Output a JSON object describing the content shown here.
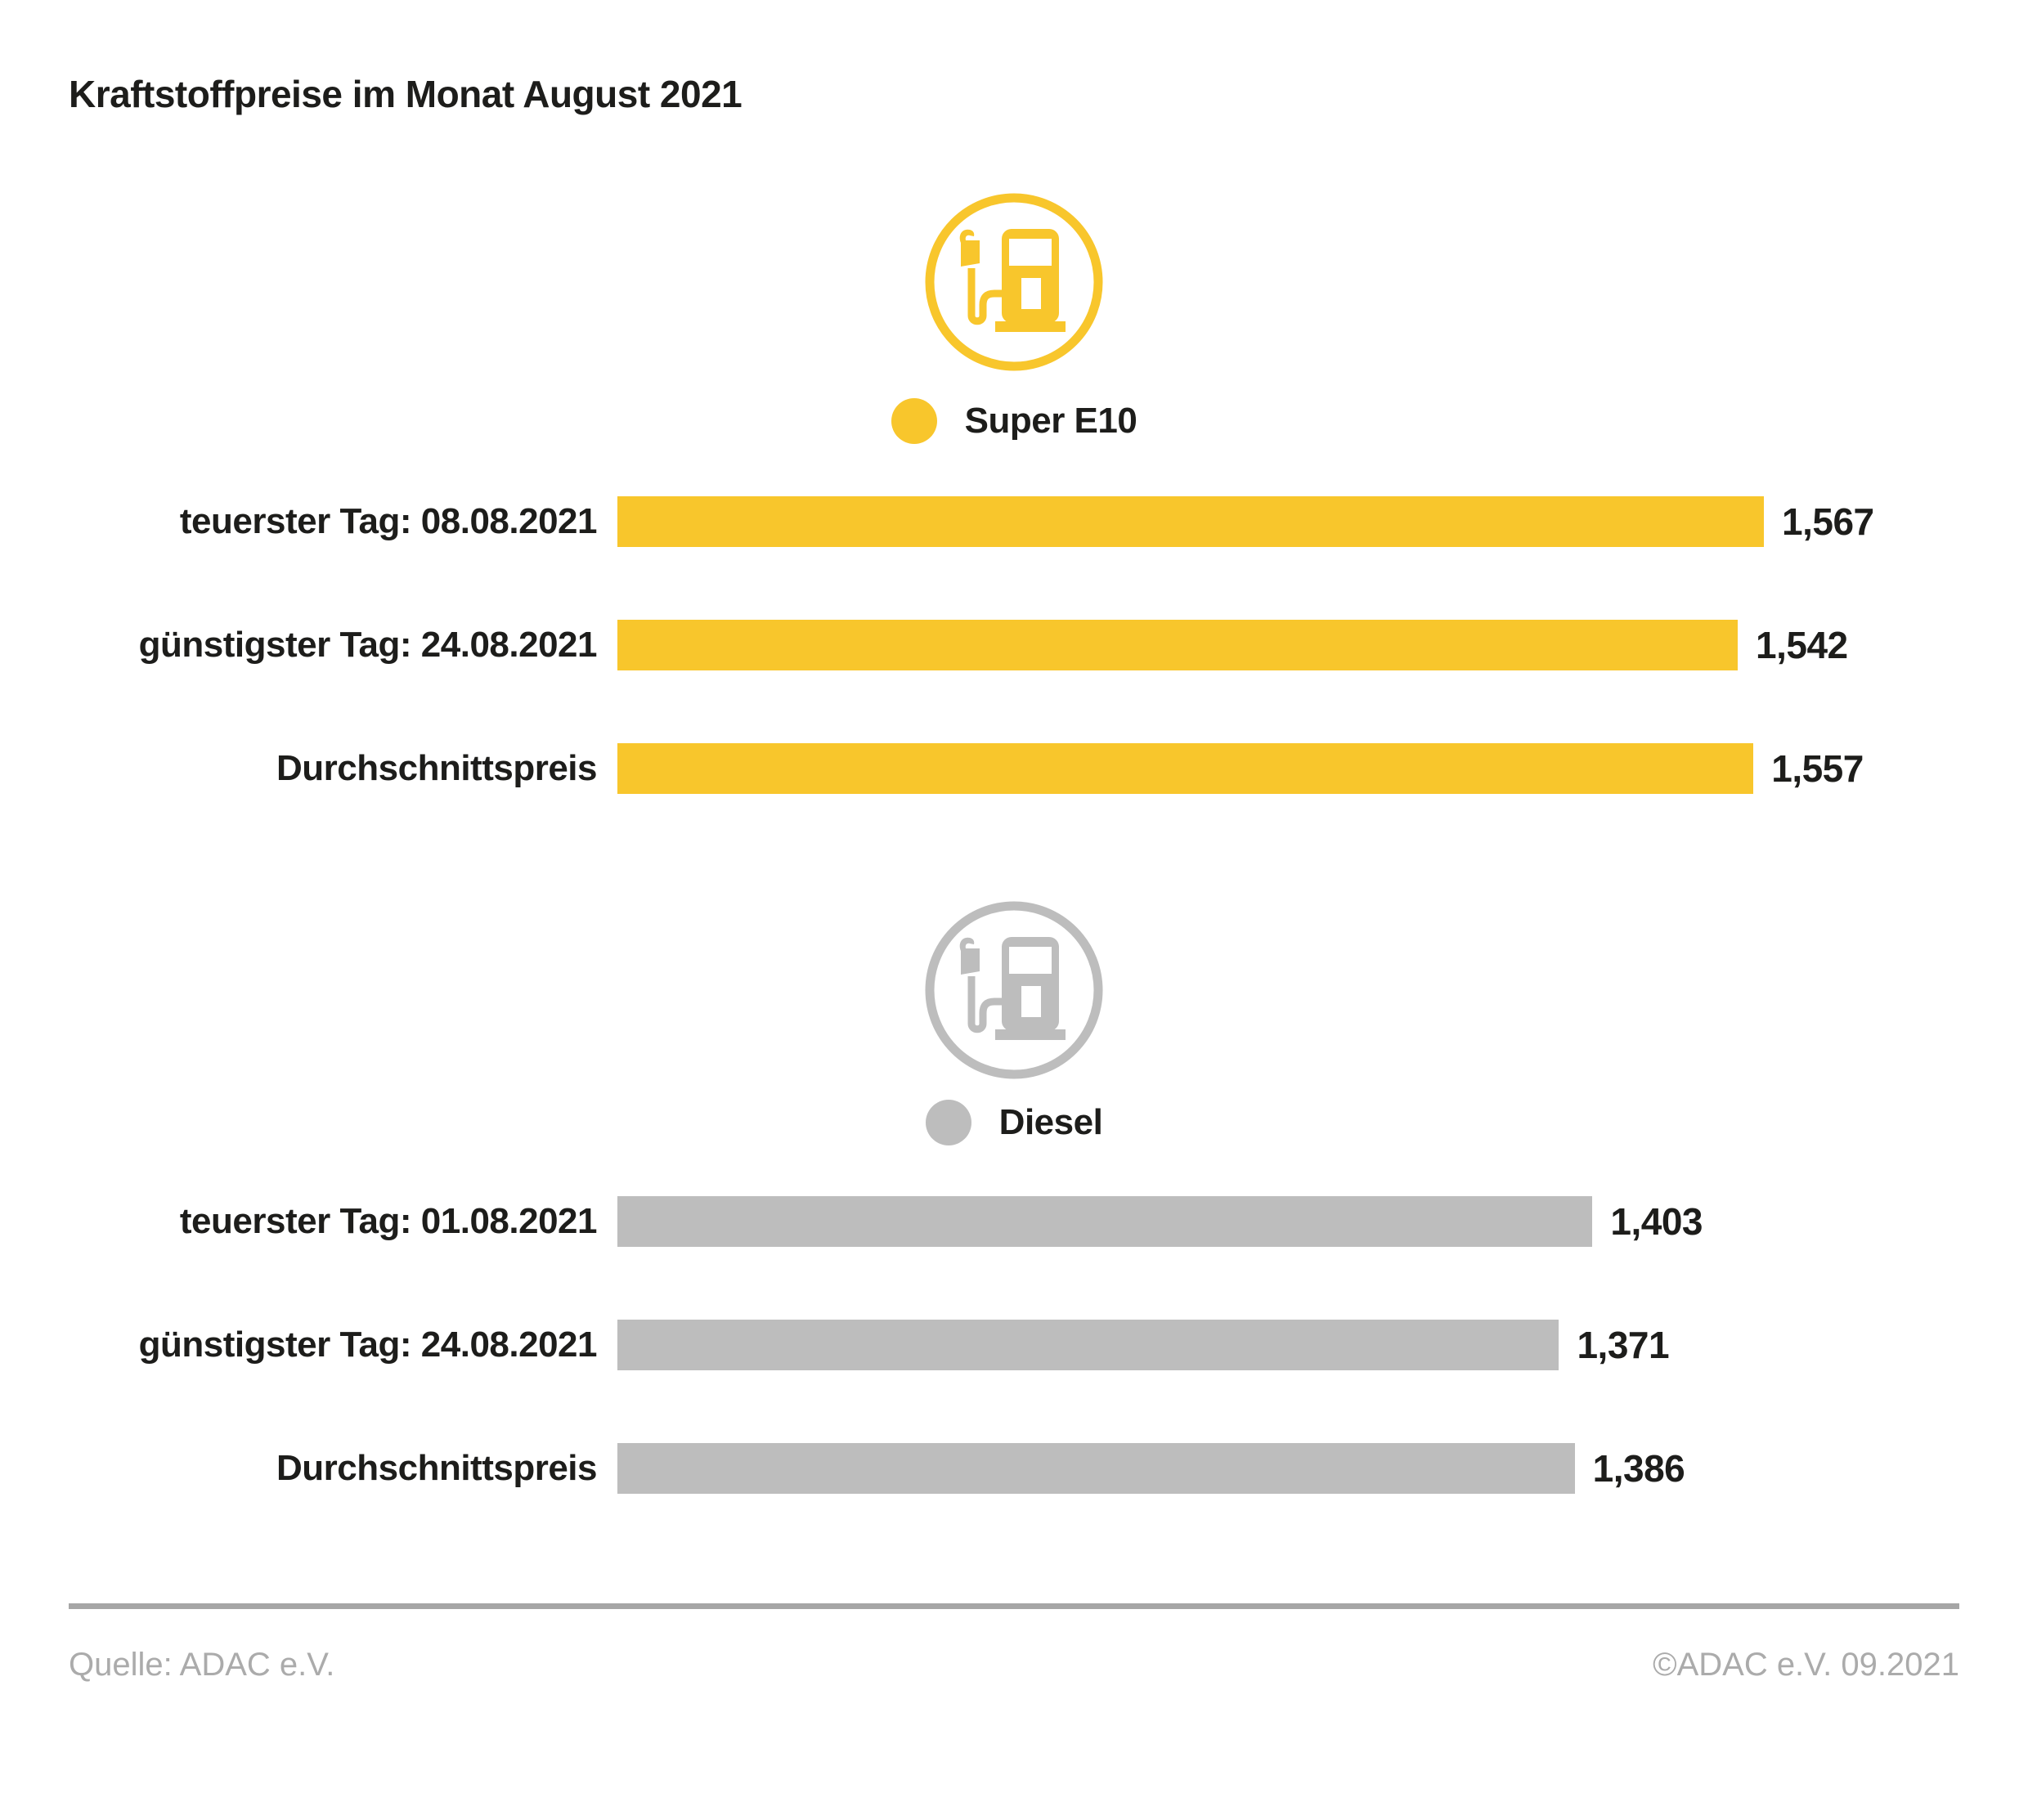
{
  "title": "Kraftstoffpreise im Monat August 2021",
  "footer": {
    "source": "Quelle: ADAC e.V.",
    "copyright": "©ADAC e.V. 09.2021"
  },
  "colors": {
    "super_e10_yellow": "#F8C62C",
    "diesel_gray": "#BDBDBD",
    "text_dark": "#1D1D1B",
    "footer_gray": "#ABABAB",
    "divider_gray": "#A6A6A6"
  },
  "icons": {
    "super_e10": "fuel-pump-icon",
    "diesel": "fuel-pump-icon"
  },
  "chart_data": {
    "type": "bar",
    "orientation": "horizontal",
    "title": "Kraftstoffpreise im Monat August 2021",
    "grid": false,
    "legend_position": "centered-above-each-group",
    "value_labels": "right-of-bar",
    "axis_hint": {
      "value_at_zero_width": 0.47,
      "value_at_full_width": 1.567
    },
    "series": [
      {
        "name": "Super E10",
        "color": "#F8C62C",
        "rows": [
          {
            "label": "teuerster Tag: 08.08.2021",
            "value": 1.567,
            "display": "1,567"
          },
          {
            "label": "günstigster Tag: 24.08.2021",
            "value": 1.542,
            "display": "1,542"
          },
          {
            "label": "Durchschnittspreis",
            "value": 1.557,
            "display": "1,557"
          }
        ]
      },
      {
        "name": "Diesel",
        "color": "#BDBDBD",
        "rows": [
          {
            "label": "teuerster Tag: 01.08.2021",
            "value": 1.403,
            "display": "1,403"
          },
          {
            "label": "günstigster Tag: 24.08.2021",
            "value": 1.371,
            "display": "1,371"
          },
          {
            "label": "Durchschnittspreis",
            "value": 1.386,
            "display": "1,386"
          }
        ]
      }
    ]
  }
}
